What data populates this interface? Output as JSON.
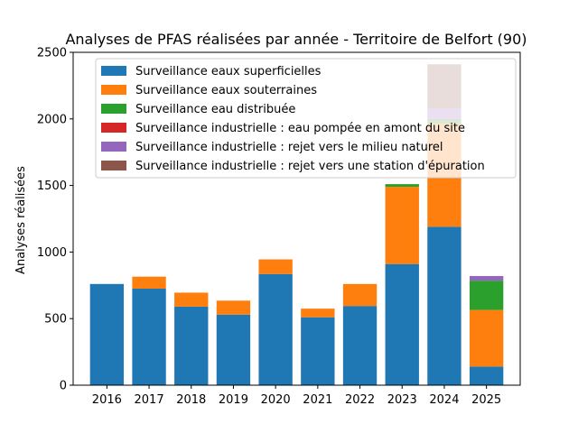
{
  "chart_data": {
    "type": "bar",
    "stacked": true,
    "title": "Analyses de PFAS réalisées par année - Territoire de Belfort (90)",
    "xlabel": "",
    "ylabel": "Analyses réalisées",
    "ylim": [
      0,
      2500
    ],
    "yticks": [
      0,
      500,
      1000,
      1500,
      2000,
      2500
    ],
    "categories": [
      "2016",
      "2017",
      "2018",
      "2019",
      "2020",
      "2021",
      "2022",
      "2023",
      "2024",
      "2025"
    ],
    "legend_position": "top",
    "grid": false,
    "series": [
      {
        "name": "Surveillance eaux superficielles",
        "color": "#1f77b4",
        "values": [
          760,
          725,
          590,
          530,
          835,
          510,
          595,
          910,
          1190,
          140
        ]
      },
      {
        "name": "Surveillance eaux souterraines",
        "color": "#ff7f0e",
        "values": [
          0,
          90,
          105,
          105,
          110,
          65,
          165,
          580,
          775,
          425
        ]
      },
      {
        "name": "Surveillance eau distribuée",
        "color": "#2ca02c",
        "values": [
          0,
          0,
          0,
          0,
          0,
          0,
          0,
          20,
          30,
          220
        ]
      },
      {
        "name": "Surveillance industrielle : eau pompée en amont du site",
        "color": "#d62728",
        "values": [
          0,
          0,
          0,
          0,
          0,
          0,
          0,
          0,
          5,
          0
        ]
      },
      {
        "name": "Surveillance industrielle : rejet vers le milieu naturel",
        "color": "#9467bd",
        "values": [
          0,
          0,
          0,
          0,
          0,
          0,
          0,
          0,
          80,
          35
        ]
      },
      {
        "name": "Surveillance industrielle : rejet vers une station d'épuration",
        "color": "#8c564b",
        "values": [
          0,
          0,
          0,
          0,
          0,
          0,
          0,
          0,
          330,
          0
        ]
      }
    ]
  }
}
